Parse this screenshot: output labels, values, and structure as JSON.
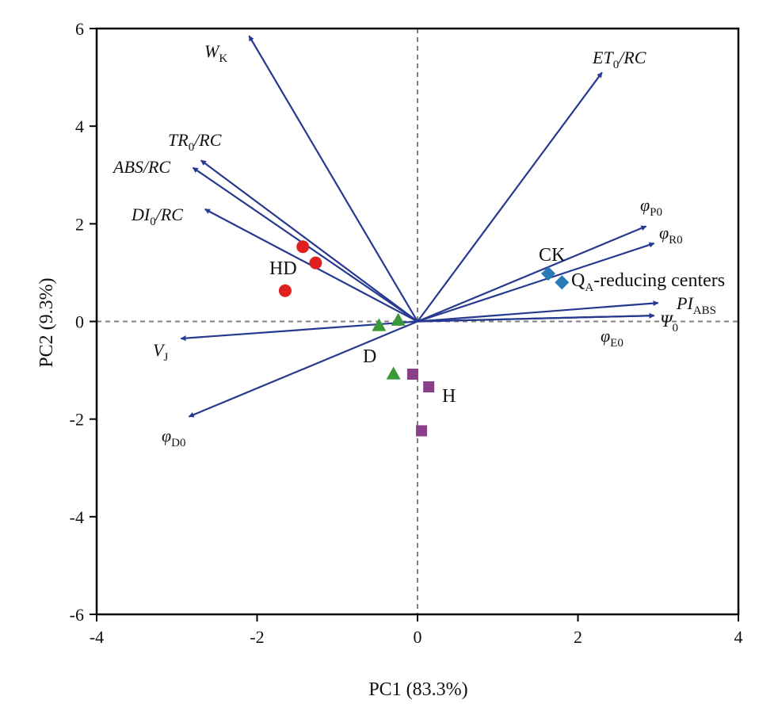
{
  "chart_data": {
    "type": "scatter",
    "subtype": "pca-biplot",
    "xlabel": "PC1 (83.3%)",
    "ylabel": "PC2 (9.3%)",
    "xlim": [
      -4,
      4
    ],
    "ylim": [
      -6,
      6
    ],
    "xticks": [
      -4,
      -2,
      0,
      2,
      4
    ],
    "yticks": [
      -6,
      -4,
      -2,
      0,
      2,
      4,
      6
    ],
    "reference_lines": {
      "x": 0,
      "y": 0,
      "style": "dashed",
      "color": "#808080"
    },
    "vector_color": "#26398f",
    "loadings": [
      {
        "name": "W_K",
        "base": "W",
        "sub": "K",
        "x": -2.1,
        "y": 5.85
      },
      {
        "name": "ET_0/RC",
        "base": "ET",
        "sub": "0",
        "tail": "/RC",
        "x": 2.3,
        "y": 5.1
      },
      {
        "name": "TR_0/RC",
        "base": "TR",
        "sub": "0",
        "tail": "/RC",
        "x": -2.7,
        "y": 3.3
      },
      {
        "name": "ABS/RC",
        "base": "ABS/RC",
        "x": -2.8,
        "y": 3.15
      },
      {
        "name": "DI_0/RC",
        "base": "DI",
        "sub": "0",
        "tail": "/RC",
        "x": -2.65,
        "y": 2.3
      },
      {
        "name": "φ_P0",
        "base": "φ",
        "sub": "P0",
        "x": 2.85,
        "y": 1.95
      },
      {
        "name": "φ_R0",
        "base": "φ",
        "sub": "R0",
        "x": 2.95,
        "y": 1.6
      },
      {
        "name": "PI_ABS",
        "base": "PI",
        "sub": "ABS",
        "x": 3.0,
        "y": 0.38
      },
      {
        "name": "Ψ_0",
        "base": "Ψ",
        "sub": "0",
        "x": 2.95,
        "y": 0.12
      },
      {
        "name": "φ_E0",
        "base": "φ",
        "sub": "E0",
        "x": 2.95,
        "y": 0.12
      },
      {
        "name": "V_J",
        "base": "V",
        "sub": "J",
        "x": -2.95,
        "y": -0.35
      },
      {
        "name": "φ_D0",
        "base": "φ",
        "sub": "D0",
        "x": -2.85,
        "y": -1.95
      }
    ],
    "groups": [
      {
        "name": "CK",
        "marker": "diamond",
        "color": "#2a7ab8",
        "points": [
          [
            1.63,
            0.98
          ],
          [
            1.8,
            0.8
          ]
        ]
      },
      {
        "name": "HD",
        "marker": "circle",
        "color": "#e01f1f",
        "points": [
          [
            -1.43,
            1.53
          ],
          [
            -1.27,
            1.2
          ],
          [
            -1.65,
            0.63
          ]
        ]
      },
      {
        "name": "D",
        "marker": "triangle",
        "color": "#3a9a3a",
        "points": [
          [
            -0.48,
            -0.08
          ],
          [
            -0.24,
            0.03
          ],
          [
            -0.3,
            -1.07
          ]
        ]
      },
      {
        "name": "H",
        "marker": "square",
        "color": "#8b3f8b",
        "points": [
          [
            -0.06,
            -1.08
          ],
          [
            0.14,
            -1.34
          ],
          [
            0.05,
            -2.24
          ]
        ]
      }
    ],
    "annotations": [
      {
        "text": "Q",
        "sub": "A",
        "tail": "-reducing centers",
        "x": 1.9,
        "y": 0.85
      }
    ]
  }
}
